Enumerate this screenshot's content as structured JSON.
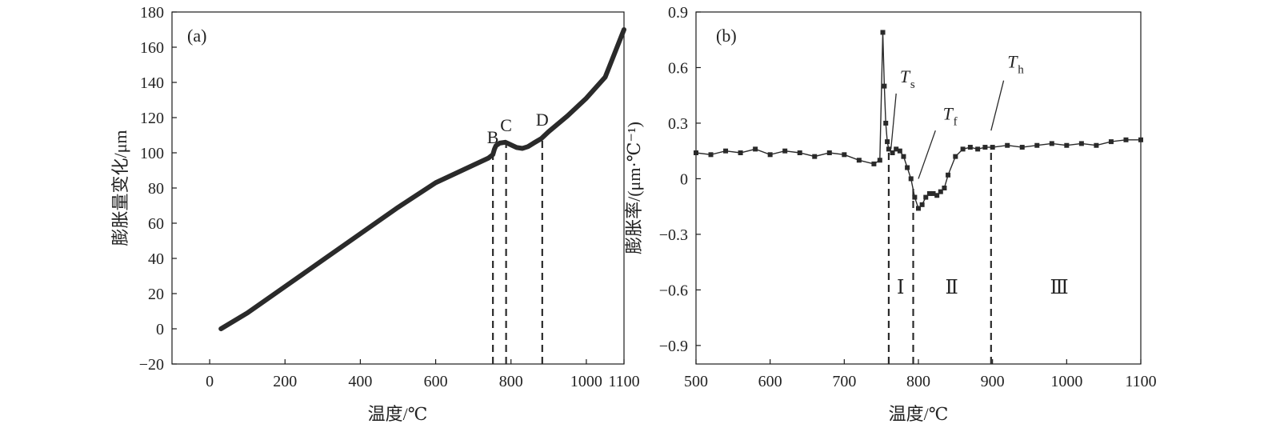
{
  "colors": {
    "line": "#2a2a2a",
    "axis": "#1a1a1a",
    "background": "#ffffff"
  },
  "chart_data": [
    {
      "type": "line",
      "panel_label": "(a)",
      "xlabel": "温度/℃",
      "ylabel": "膨胀量变化/μm",
      "xlim": [
        -100,
        1100
      ],
      "ylim": [
        -20,
        180
      ],
      "xticks": [
        0,
        200,
        400,
        600,
        800,
        1000,
        1100
      ],
      "xtick_labels": [
        "0",
        "200",
        "400",
        "600",
        "800",
        "1000",
        "1100"
      ],
      "yticks": [
        -20,
        0,
        20,
        40,
        60,
        80,
        100,
        120,
        140,
        160,
        180
      ],
      "ytick_labels": [
        "−20",
        "0",
        "20",
        "40",
        "60",
        "80",
        "100",
        "120",
        "140",
        "160",
        "180"
      ],
      "series": [
        {
          "name": "膨胀量变化",
          "x": [
            30,
            100,
            200,
            300,
            400,
            500,
            600,
            700,
            740,
            752,
            756,
            760,
            770,
            785,
            800,
            815,
            830,
            845,
            860,
            880,
            900,
            950,
            1000,
            1050,
            1100
          ],
          "y": [
            0,
            9,
            24,
            39,
            54,
            69,
            83,
            93,
            97,
            99,
            102,
            104,
            105.5,
            106,
            104.5,
            103,
            102.5,
            103.5,
            105.5,
            108,
            112,
            121,
            131,
            143,
            170
          ]
        }
      ],
      "points": [
        {
          "label": "B",
          "x": 752
        },
        {
          "label": "C",
          "x": 787
        },
        {
          "label": "D",
          "x": 883
        }
      ],
      "vlines": [
        {
          "x": 752,
          "y_top": 99
        },
        {
          "x": 787,
          "y_top": 106
        },
        {
          "x": 883,
          "y_top": 109
        }
      ]
    },
    {
      "type": "scatter",
      "panel_label": "(b)",
      "xlabel": "温度/℃",
      "ylabel": "膨胀率/(μm·℃⁻¹)",
      "xlim": [
        500,
        1100
      ],
      "ylim": [
        -1.0,
        0.9
      ],
      "xticks": [
        500,
        600,
        700,
        800,
        900,
        1000,
        1100
      ],
      "xtick_labels": [
        "500",
        "600",
        "700",
        "800",
        "900",
        "1000",
        "1100"
      ],
      "yticks": [
        -0.9,
        -0.6,
        -0.3,
        0,
        0.3,
        0.6,
        0.9
      ],
      "ytick_labels": [
        "−0.9",
        "−0.6",
        "−0.3",
        "0",
        "0.3",
        "0.6",
        "0.9"
      ],
      "series": [
        {
          "name": "膨胀率",
          "x": [
            500,
            520,
            540,
            560,
            580,
            600,
            620,
            640,
            660,
            680,
            700,
            720,
            740,
            748,
            752,
            754,
            756,
            758,
            760,
            765,
            770,
            775,
            780,
            785,
            790,
            795,
            800,
            805,
            810,
            815,
            820,
            825,
            830,
            835,
            840,
            850,
            860,
            870,
            880,
            890,
            900,
            920,
            940,
            960,
            980,
            1000,
            1020,
            1040,
            1060,
            1080,
            1100
          ],
          "y": [
            0.14,
            0.13,
            0.15,
            0.14,
            0.16,
            0.13,
            0.15,
            0.14,
            0.12,
            0.14,
            0.13,
            0.1,
            0.08,
            0.1,
            0.79,
            0.5,
            0.3,
            0.2,
            0.16,
            0.14,
            0.16,
            0.15,
            0.12,
            0.06,
            0.0,
            -0.1,
            -0.16,
            -0.14,
            -0.1,
            -0.08,
            -0.08,
            -0.09,
            -0.07,
            -0.05,
            0.02,
            0.12,
            0.16,
            0.17,
            0.16,
            0.17,
            0.17,
            0.18,
            0.17,
            0.18,
            0.19,
            0.18,
            0.19,
            0.18,
            0.2,
            0.21,
            0.21
          ]
        }
      ],
      "annotations": [
        {
          "label": "T",
          "sub": "s",
          "text_x": 775,
          "text_y": 0.52,
          "line_from": [
            770,
            0.46
          ],
          "line_to": [
            763,
            0.16
          ]
        },
        {
          "label": "T",
          "sub": "f",
          "text_x": 833,
          "text_y": 0.32,
          "line_from": [
            823,
            0.26
          ],
          "line_to": [
            800,
            0.0
          ]
        },
        {
          "label": "T",
          "sub": "h",
          "text_x": 920,
          "text_y": 0.6,
          "line_from": [
            915,
            0.53
          ],
          "line_to": [
            898,
            0.26
          ]
        }
      ],
      "vlines": [
        {
          "x": 760,
          "y_top": 0.16
        },
        {
          "x": 793,
          "y_top": -0.05
        },
        {
          "x": 898,
          "y_top": 0.17
        }
      ],
      "regions": [
        {
          "label": "Ⅰ",
          "x": 776,
          "y": -0.62
        },
        {
          "label": "Ⅱ",
          "x": 845,
          "y": -0.62
        },
        {
          "label": "Ⅲ",
          "x": 990,
          "y": -0.62
        }
      ]
    }
  ]
}
